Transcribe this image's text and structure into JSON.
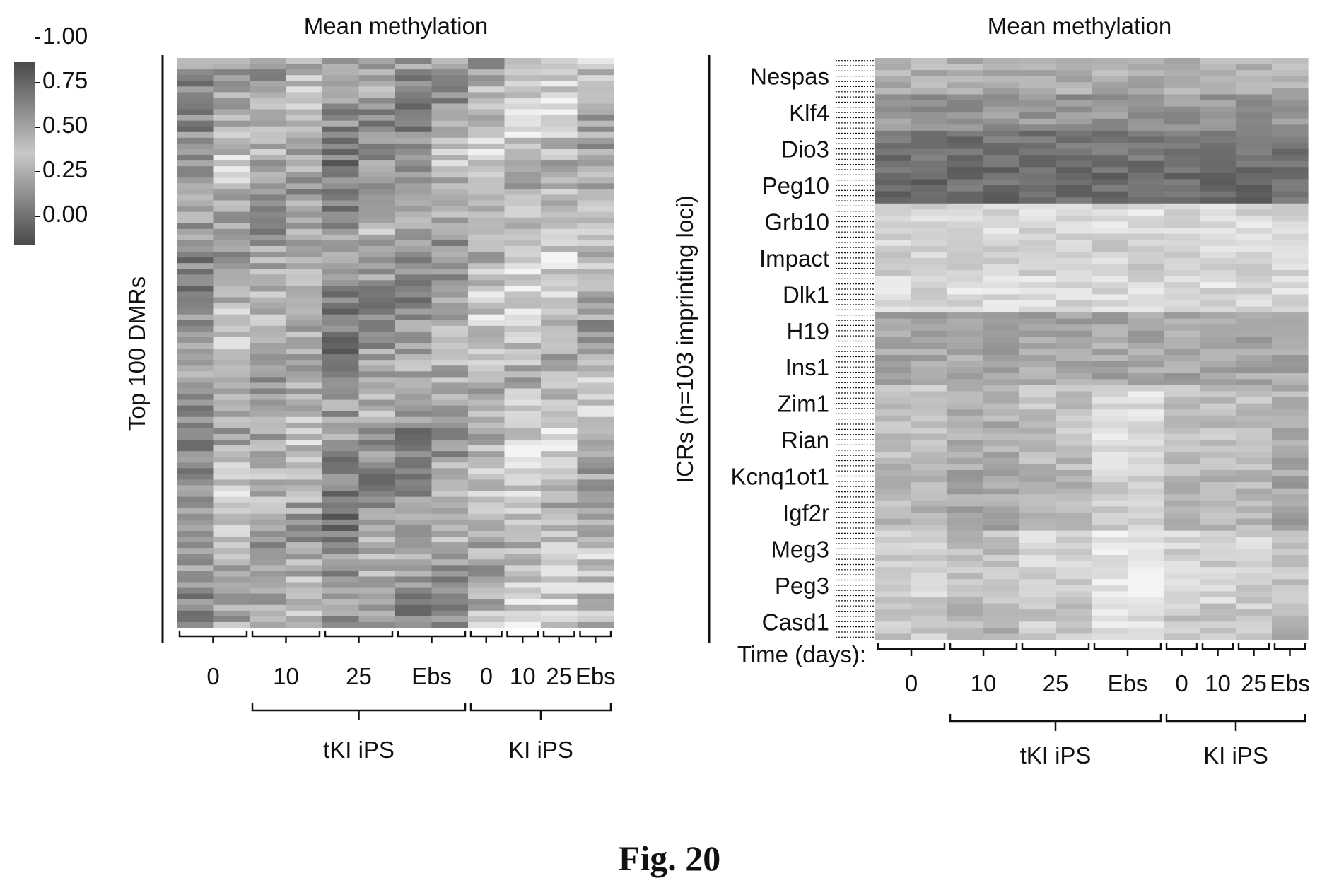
{
  "figure_caption": "Fig. 20",
  "colors": {
    "high": "#4a4a4a",
    "low": "#f4f4f4",
    "axis": "#111111"
  },
  "chart_data": [
    {
      "type": "heatmap",
      "title": "Mean methylation",
      "ylabel": "Top 100 DMRs",
      "value_range": [
        0,
        1
      ],
      "color_scale": {
        "low_color": "light grey",
        "high_color": "dark grey"
      },
      "colorbar": {
        "ticks": [
          "1.00",
          "0.75",
          "0.50",
          "0.25",
          "0.00"
        ],
        "placement": "top-left"
      },
      "columns": [
        {
          "label": "0",
          "subcols": 2,
          "group": ""
        },
        {
          "label": "10",
          "subcols": 2,
          "group": "tKI iPS"
        },
        {
          "label": "25",
          "subcols": 2,
          "group": "tKI iPS"
        },
        {
          "label": "Ebs",
          "subcols": 2,
          "group": "tKI iPS"
        },
        {
          "label": "0",
          "subcols": 1,
          "group": "KI iPS"
        },
        {
          "label": "10",
          "subcols": 1,
          "group": "KI iPS"
        },
        {
          "label": "25",
          "subcols": 1,
          "group": "KI iPS"
        },
        {
          "label": "Ebs",
          "subcols": 1,
          "group": "KI iPS"
        }
      ],
      "groups": [
        "tKI iPS",
        "KI iPS"
      ],
      "rows": 100,
      "approx_mean_by_column": [
        0.55,
        0.38,
        0.45,
        0.4,
        0.62,
        0.5,
        0.55,
        0.45,
        0.35,
        0.28,
        0.3,
        0.38
      ]
    },
    {
      "type": "heatmap",
      "title": "Mean methylation",
      "ylabel": "ICRs (n=103 imprinting loci)",
      "xlabel": "Time (days):",
      "value_range": [
        0,
        1
      ],
      "row_labels": [
        "Nespas",
        "Klf4",
        "Dio3",
        "Peg10",
        "Grb10",
        "Impact",
        "Dlk1",
        "H19",
        "Ins1",
        "Zim1",
        "Rian",
        "Kcnq1ot1",
        "Igf2r",
        "Meg3",
        "Peg3",
        "Casd1"
      ],
      "approx_row_means": [
        0.4,
        0.55,
        0.75,
        0.8,
        0.15,
        0.2,
        0.15,
        0.45,
        0.45,
        0.3,
        0.3,
        0.35,
        0.35,
        0.2,
        0.2,
        0.25
      ],
      "columns": [
        {
          "label": "0",
          "subcols": 2,
          "group": ""
        },
        {
          "label": "10",
          "subcols": 2,
          "group": "tKI iPS"
        },
        {
          "label": "25",
          "subcols": 2,
          "group": "tKI iPS"
        },
        {
          "label": "Ebs",
          "subcols": 2,
          "group": "tKI iPS"
        },
        {
          "label": "0",
          "subcols": 1,
          "group": "KI iPS"
        },
        {
          "label": "10",
          "subcols": 1,
          "group": "KI iPS"
        },
        {
          "label": "25",
          "subcols": 1,
          "group": "KI iPS"
        },
        {
          "label": "Ebs",
          "subcols": 1,
          "group": "KI iPS"
        }
      ],
      "groups": [
        "tKI iPS",
        "KI iPS"
      ]
    }
  ]
}
